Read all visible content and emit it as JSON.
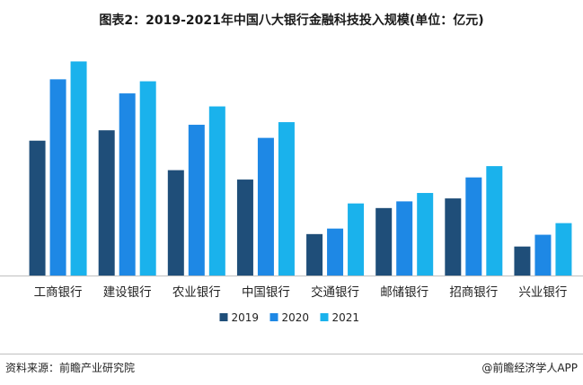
{
  "title": "图表2：2019-2021年中国八大银行金融科技投入规模(单位：亿元)",
  "source": "资料来源：前瞻产业研究院",
  "brand": "@前瞻经济学人APP",
  "colors": {
    "2019": "#1f4e79",
    "2020": "#1e88e5",
    "2021": "#1ab2ec"
  },
  "chart_data": {
    "type": "bar",
    "categories": [
      "工商银行",
      "建设银行",
      "农业银行",
      "中国银行",
      "交通银行",
      "邮储银行",
      "招商银行",
      "兴业银行"
    ],
    "series": [
      {
        "name": "2019",
        "values": [
          163.7,
          176.3,
          127.9,
          116.5,
          50.3,
          81.9,
          93.6,
          35.2
        ]
      },
      {
        "name": "2020",
        "values": [
          238.2,
          221.1,
          183.0,
          167.1,
          57.0,
          90.0,
          119.1,
          49.5
        ]
      },
      {
        "name": "2021",
        "values": [
          259.9,
          235.8,
          205.3,
          186.2,
          87.5,
          100.2,
          132.8,
          63.6
        ]
      }
    ],
    "ylim": [
      0,
      280
    ],
    "legend": "bottom-center",
    "grid": false
  }
}
